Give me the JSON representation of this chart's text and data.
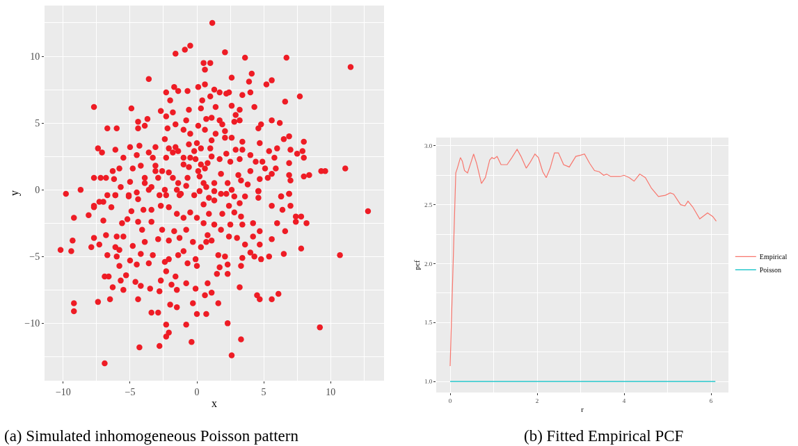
{
  "chart_data": [
    {
      "type": "scatter",
      "color": "#ee1c25",
      "marker": "circle",
      "grid": true,
      "xlabel": "x",
      "ylabel": "y",
      "xlim": [
        -11.4,
        14.0
      ],
      "ylim": [
        -14.3,
        13.8
      ],
      "xticks": [
        {
          "value": -10,
          "label": "−10"
        },
        {
          "value": -5,
          "label": "−5"
        },
        0,
        5,
        10
      ],
      "yticks": [
        {
          "value": -10,
          "label": "−10"
        },
        {
          "value": -5,
          "label": "−5"
        },
        0,
        5,
        10
      ],
      "annotations": [
        "(a) Simulated inhomogeneous Poisson pattern"
      ],
      "x": [
        1.15,
        11.5,
        6.7,
        3.6,
        2.1,
        -0.5,
        -1.6,
        -0.9,
        0.5,
        1.0,
        0.6,
        -3.6,
        2.6,
        4.1,
        3.9,
        5.2,
        5.6,
        7.7,
        6.6,
        -7.7,
        -4.9,
        11.1,
        9.6,
        9.3,
        8.4,
        8.0,
        -9.8,
        -8.7,
        12.8,
        10.7,
        9.2,
        2.6,
        -6.9,
        -4.3,
        -2.8,
        -0.4,
        -2.3,
        -2.1,
        -2.3,
        -0.8,
        2.3,
        3.3,
        -10.2,
        -9.4,
        -9.2,
        -9.2,
        -7.4,
        -6.5,
        -4.4,
        -3.4,
        -2.9,
        -2.0,
        -1.5,
        -0.3,
        0.0,
        0.7,
        1.6,
        3.2,
        4.5,
        4.7,
        5.6,
        6.1,
        7.8,
        6.5,
        8.2,
        7.4,
        7.4,
        7.8,
        -8.1,
        -9.2,
        -9.3,
        -7.7,
        -7.9,
        -7.0,
        -6.9,
        -6.6,
        -6.3,
        -5.5,
        -4.6,
        -4.2,
        -3.5,
        -2.8,
        -2.7,
        -1.9,
        -1.5,
        -0.8,
        -0.1,
        0.6,
        1.1,
        0.8,
        1.5,
        1.7,
        2.3,
        2.3,
        3.3,
        3.4,
        4.3,
        4.8,
        5.4,
        4.7,
        4.0,
        5.6,
        6.6,
        6.0,
        4.2,
        4.7,
        4.2,
        3.4,
        3.3,
        6.4,
        6.3,
        6.9,
        7.0,
        4.6,
        4.6,
        5.6,
        3.6,
        3.0,
        2.4,
        2.1,
        1.6,
        1.1,
        0.7,
        0.0,
        -0.1,
        -0.7,
        -1.6,
        -2.3,
        -2.4,
        -2.1,
        -3.3,
        -3.6,
        -4.2,
        -4.5,
        -5.0,
        -5.3,
        -5.7,
        -5.8,
        -6.0,
        -6.7,
        -6.1,
        -5.8,
        -7.3,
        -6.8,
        -6.0,
        -4.8,
        -3.9,
        -2.9,
        -2.1,
        -1.3,
        -0.3,
        0.3,
        -1.4,
        -1.0,
        -4.1,
        -5.5,
        -5.2,
        -5.6,
        -7.0,
        -7.7,
        -6.4,
        -4.4,
        -3.4,
        -2.6,
        -1.7,
        -0.8,
        0.5,
        1.3,
        0.8,
        1.8,
        2.5,
        -1.5,
        -1.0,
        0.0,
        0.9,
        1.9,
        2.8,
        -2.1,
        -2.7,
        -4.0,
        -4.9,
        -3.4,
        -0.5,
        0.5,
        1.3,
        2.4,
        3.2,
        -1.3,
        -2.3,
        -3.6,
        -0.2,
        0.9,
        1.8,
        2.8,
        -4.5,
        -5.1,
        -6.1,
        -7.3,
        -7.7,
        -7.2,
        -6.8,
        -6.3,
        -5.8,
        -6.2,
        -5.7,
        -5.0,
        -4.8,
        -4.2,
        -5.5,
        -5.0,
        -4.3,
        -3.6,
        -3.1,
        -3.3,
        -4.5,
        -6.1,
        -7.4,
        -7.1,
        -6.7,
        -6.0,
        -4.4,
        -4.4,
        -3.7,
        -3.9,
        -2.7,
        -2.3,
        -2.2,
        -1.8,
        -2.0,
        -2.3,
        -1.7,
        -1.4,
        -0.7,
        -1.6,
        -1.0,
        -0.6,
        -0.8,
        0.1,
        0.6,
        0.4,
        0.3,
        0.7,
        1.1,
        1.3,
        1.7,
        1.0,
        1.4,
        0.1,
        0.6,
        1.7,
        1.9,
        1.4,
        2.1,
        2.1,
        2.6,
        2.6,
        3.2,
        2.9,
        2.8,
        3.2,
        2.2,
        2.4,
        3.4,
        4.0,
        4.3,
        4.6,
        4.8,
        5.6,
        6.2,
        6.5,
        6.9,
        8.0,
        7.0,
        6.0,
        5.4,
        7.9,
        8.0,
        7.5,
        6.9,
        5.8,
        5.9,
        5.6,
        4.9,
        5.1,
        4.7,
        4.0,
        4.4,
        3.4,
        3.4,
        2.9,
        3.2,
        2.5,
        2.2,
        1.7,
        1.1,
        1.0,
        1.1,
        0.3,
        0.0,
        -0.5,
        -0.6,
        -0.2,
        -1.0,
        -0.5,
        -0.1,
        0.3,
        0.8,
        0.6,
        0.1,
        -0.6,
        -1.0,
        -1.6,
        -1.4,
        -1.8,
        -2.1,
        -2.4,
        -2.3,
        -3.1,
        -2.6,
        -2.1,
        -3.1,
        -3.9,
        -2.9,
        -1.8,
        -1.4,
        -0.7,
        0.2,
        0.5,
        1.3,
        1.8,
        2.3,
        3.1,
        3.3,
        3.8,
        4.0,
        4.7,
        5.3,
        6.9,
        7.0,
        6.9,
        6.3,
        4.6,
        3.6,
        2.6,
        2.2,
        1.3,
        0.7,
        0.2,
        -0.8,
        -1.2,
        -1.5,
        -2.4,
        -2.8,
        -3.4,
        -3.9,
        -4.4,
        -5.1,
        -6.1,
        -6.7,
        -7.7
      ],
      "values": [
        12.5,
        9.2,
        9.9,
        9.9,
        10.3,
        10.8,
        10.2,
        10.5,
        9.5,
        9.5,
        9.0,
        8.3,
        8.4,
        8.7,
        8.1,
        7.9,
        8.2,
        7.0,
        6.6,
        6.2,
        6.1,
        1.6,
        1.4,
        1.4,
        1.1,
        1.0,
        -0.3,
        0.0,
        -1.6,
        -4.9,
        -10.3,
        -12.4,
        -13.0,
        -11.8,
        -11.7,
        -11.4,
        -11.0,
        -10.7,
        -10.1,
        -10.1,
        -10.0,
        -11.2,
        -4.5,
        -4.6,
        -9.1,
        -8.5,
        -8.4,
        -8.2,
        -8.2,
        -9.2,
        -9.2,
        -8.6,
        -8.8,
        -8.5,
        -9.3,
        -9.3,
        -8.5,
        -7.3,
        -7.9,
        -8.2,
        -8.2,
        -7.8,
        -4.4,
        -4.8,
        -2.5,
        -2.4,
        -2.0,
        -2.0,
        -1.9,
        -2.1,
        -3.8,
        -3.6,
        -4.3,
        -2.3,
        -6.5,
        -6.5,
        -7.3,
        -7.5,
        -6.9,
        -7.2,
        -7.4,
        -7.6,
        -6.8,
        -7.1,
        -7.5,
        -7.0,
        -7.4,
        -7.9,
        -7.7,
        -7.0,
        -6.3,
        -5.8,
        -6.3,
        -5.6,
        -5.7,
        -5.1,
        -5.0,
        -5.2,
        -5.0,
        -4.1,
        -4.7,
        -3.7,
        -3.1,
        -2.5,
        -2.5,
        -3.1,
        -3.5,
        -2.6,
        -2.0,
        -1.5,
        -0.5,
        -0.3,
        -1.2,
        -0.1,
        -0.6,
        -1.2,
        -4.1,
        -3.6,
        -3.5,
        -5.0,
        -4.9,
        -3.8,
        -3.9,
        -5.7,
        -5.2,
        -5.5,
        -6.5,
        -6.1,
        -5.4,
        -5.2,
        -4.9,
        -5.5,
        -4.8,
        -5.6,
        -5.3,
        -6.4,
        -6.8,
        -5.7,
        -5.0,
        -4.9,
        -4.3,
        -4.5,
        -4.1,
        -3.4,
        -3.5,
        -4.2,
        -3.9,
        -3.7,
        -3.8,
        -3.6,
        -3.9,
        -4.3,
        -4.9,
        -4.6,
        -3.0,
        -3.5,
        -2.2,
        -2.5,
        -0.9,
        -1.3,
        -1.3,
        -2.4,
        -2.4,
        -3.0,
        -3.1,
        -3.0,
        -2.5,
        -2.6,
        -3.4,
        -3.0,
        -2.6,
        -1.8,
        -2.1,
        -2.1,
        -1.8,
        -1.8,
        -1.7,
        -1.3,
        -1.2,
        -1.5,
        -1.6,
        -1.5,
        -1.7,
        -1.1,
        -0.8,
        -1.2,
        -1.0,
        -0.4,
        -0.4,
        0.0,
        -0.4,
        -0.6,
        -0.3,
        -0.5,
        -0.2,
        -0.5,
        -0.4,
        -0.9,
        0.9,
        0.9,
        0.9,
        1.4,
        1.6,
        0.8,
        0.2,
        0.6,
        1.6,
        1.8,
        2.4,
        3.2,
        3.3,
        2.8,
        3.2,
        2.4,
        2.6,
        3.0,
        3.1,
        2.8,
        4.6,
        4.6,
        4.6,
        5.1,
        5.3,
        4.8,
        5.9,
        5.5,
        4.6,
        5.8,
        6.7,
        7.3,
        7.7,
        7.4,
        7.4,
        4.9,
        4.5,
        6.0,
        5.2,
        7.7,
        7.9,
        6.7,
        6.1,
        5.3,
        5.4,
        7.5,
        7.3,
        7.0,
        6.2,
        4.8,
        4.5,
        5.2,
        4.9,
        4.2,
        4.4,
        3.9,
        3.9,
        6.3,
        6.0,
        5.6,
        5.1,
        5.2,
        7.2,
        7.3,
        7.1,
        7.3,
        6.2,
        4.6,
        4.9,
        5.2,
        5.0,
        3.8,
        4.0,
        3.6,
        3.0,
        3.1,
        2.9,
        2.9,
        2.4,
        2.7,
        2.0,
        2.4,
        1.6,
        1.2,
        2.1,
        1.6,
        3.5,
        2.6,
        2.1,
        3.6,
        3.0,
        3.0,
        2.3,
        2.1,
        2.7,
        2.3,
        2.5,
        3.1,
        3.7,
        3.1,
        3.5,
        4.2,
        3.4,
        2.9,
        2.4,
        2.4,
        2.3,
        1.9,
        2.0,
        1.6,
        1.4,
        1.7,
        1.9,
        3.2,
        2.9,
        2.8,
        3.1,
        3.8,
        2.4,
        1.8,
        1.4,
        1.3,
        1.4,
        0.9,
        0.9,
        0.9,
        0.5,
        0.9,
        1.0,
        0.5,
        0.5,
        1.2,
        0.5,
        1.1,
        0.7,
        0.4,
        1.4,
        0.8,
        0.9,
        1.1,
        0.7,
        -0.3,
        -0.5,
        -0.1,
        -0.5,
        0.0,
        -0.3,
        -0.1,
        0.2,
        -0.1,
        0.3,
        -0.3,
        0.0,
        0.0,
        -0.4,
        0.2,
        0.5,
        -0.7,
        -0.4,
        -0.4,
        -0.4,
        -1.2
      ]
    },
    {
      "type": "line",
      "grid": true,
      "legend": "right",
      "xlabel": "r",
      "ylabel": "pcf",
      "xlim": [
        -0.32,
        6.4
      ],
      "ylim": [
        0.906,
        3.07
      ],
      "xticks": [
        0,
        2,
        4,
        6
      ],
      "yticks": [
        {
          "value": 1.0,
          "label": "1.0"
        },
        1.5,
        {
          "value": 2.0,
          "label": "2.0"
        },
        2.5,
        {
          "value": 3.0,
          "label": "3.0"
        }
      ],
      "annotations": [
        "(b) Fitted Empirical PCF"
      ],
      "series": [
        {
          "name": "Empirical",
          "color": "#f8766d",
          "x": [
            0,
            0.086,
            0.13,
            0.166,
            0.236,
            0.28,
            0.33,
            0.4,
            0.48,
            0.54,
            0.61,
            0.72,
            0.81,
            0.91,
            0.96,
            1.01,
            1.08,
            1.17,
            1.31,
            1.42,
            1.54,
            1.63,
            1.75,
            1.84,
            1.95,
            2.03,
            2.13,
            2.21,
            2.3,
            2.4,
            2.49,
            2.61,
            2.74,
            2.89,
            3.0,
            3.09,
            3.21,
            3.32,
            3.43,
            3.53,
            3.6,
            3.69,
            3.91,
            4.0,
            4.12,
            4.23,
            4.36,
            4.49,
            4.63,
            4.79,
            4.95,
            5.06,
            5.14,
            5.3,
            5.4,
            5.47,
            5.58,
            5.74,
            5.92,
            6.04,
            6.12
          ],
          "values": [
            1.13,
            2.22,
            2.77,
            2.81,
            2.9,
            2.87,
            2.79,
            2.77,
            2.86,
            2.93,
            2.85,
            2.68,
            2.73,
            2.88,
            2.9,
            2.89,
            2.91,
            2.84,
            2.84,
            2.9,
            2.97,
            2.91,
            2.81,
            2.86,
            2.93,
            2.9,
            2.78,
            2.73,
            2.81,
            2.94,
            2.94,
            2.84,
            2.82,
            2.91,
            2.92,
            2.93,
            2.85,
            2.79,
            2.78,
            2.75,
            2.76,
            2.74,
            2.74,
            2.75,
            2.73,
            2.7,
            2.76,
            2.73,
            2.64,
            2.57,
            2.58,
            2.6,
            2.59,
            2.5,
            2.49,
            2.53,
            2.48,
            2.38,
            2.43,
            2.4,
            2.36
          ]
        },
        {
          "name": "Poisson",
          "color": "#00bfc4",
          "x": [
            0,
            6.1
          ],
          "values": [
            1,
            1
          ]
        }
      ]
    }
  ]
}
